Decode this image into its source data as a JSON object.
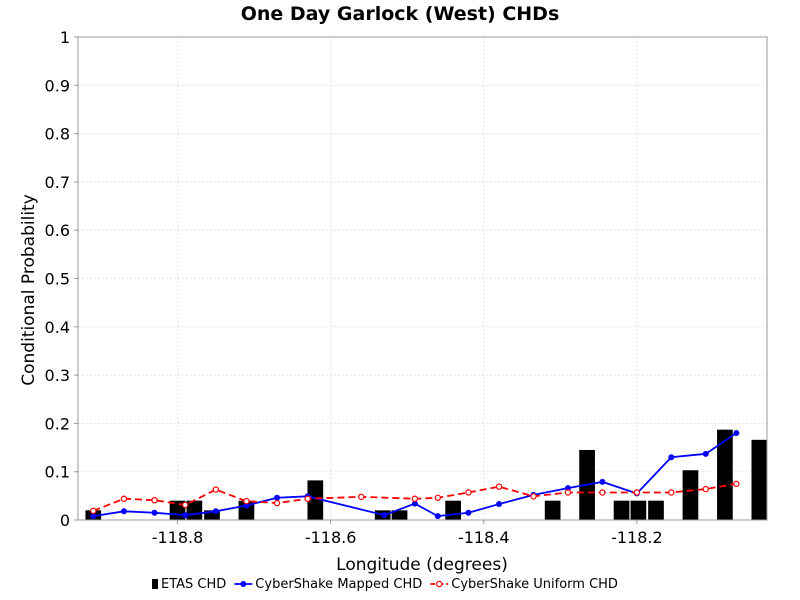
{
  "chart_data": {
    "type": "bar+line",
    "title": "One Day Garlock (West) CHDs",
    "xlabel": "Longitude (degrees)",
    "ylabel": "Conditional Probability",
    "xlim": [
      -118.93,
      -118.03
    ],
    "ylim": [
      0,
      1
    ],
    "xticks": [
      -118.8,
      -118.6,
      -118.4,
      -118.2
    ],
    "xtick_labels": [
      "-118.8",
      "-118.6",
      "-118.4",
      "-118.2"
    ],
    "yticks": [
      0,
      0.1,
      0.2,
      0.3,
      0.4,
      0.5,
      0.6,
      0.7,
      0.8,
      0.9,
      1
    ],
    "ytick_labels": [
      "0",
      "0.1",
      "0.2",
      "0.3",
      "0.4",
      "0.5",
      "0.6",
      "0.7",
      "0.8",
      "0.9",
      "1"
    ],
    "grid": true,
    "legend_position": "bottom",
    "bar_width": 0.0205,
    "series": [
      {
        "name": "ETAS CHD",
        "kind": "bar",
        "color": "#000000",
        "x": [
          -118.91,
          -118.8,
          -118.778,
          -118.755,
          -118.71,
          -118.62,
          -118.532,
          -118.51,
          -118.44,
          -118.31,
          -118.265,
          -118.22,
          -118.198,
          -118.175,
          -118.13,
          -118.085,
          -118.04
        ],
        "y": [
          0.02,
          0.04,
          0.04,
          0.02,
          0.04,
          0.082,
          0.02,
          0.02,
          0.04,
          0.04,
          0.145,
          0.04,
          0.04,
          0.04,
          0.103,
          0.187,
          0.166
        ]
      },
      {
        "name": "CyberShake Mapped CHD",
        "kind": "line",
        "color": "#0000ff",
        "x": [
          -118.91,
          -118.87,
          -118.83,
          -118.79,
          -118.75,
          -118.71,
          -118.67,
          -118.63,
          -118.53,
          -118.49,
          -118.46,
          -118.42,
          -118.38,
          -118.335,
          -118.29,
          -118.245,
          -118.2,
          -118.155,
          -118.11,
          -118.07
        ],
        "y": [
          0.008,
          0.018,
          0.015,
          0.01,
          0.018,
          0.03,
          0.046,
          0.049,
          0.01,
          0.034,
          0.008,
          0.015,
          0.033,
          0.052,
          0.066,
          0.079,
          0.055,
          0.13,
          0.137,
          0.18
        ]
      },
      {
        "name": "CyberShake Uniform CHD",
        "kind": "line-dashed",
        "color": "#ff0000",
        "x": [
          -118.91,
          -118.87,
          -118.83,
          -118.79,
          -118.75,
          -118.71,
          -118.67,
          -118.63,
          -118.56,
          -118.49,
          -118.46,
          -118.42,
          -118.38,
          -118.335,
          -118.29,
          -118.245,
          -118.2,
          -118.155,
          -118.11,
          -118.07
        ],
        "y": [
          0.019,
          0.044,
          0.041,
          0.031,
          0.063,
          0.039,
          0.035,
          0.044,
          0.048,
          0.044,
          0.046,
          0.057,
          0.069,
          0.049,
          0.057,
          0.057,
          0.057,
          0.057,
          0.064,
          0.075
        ]
      }
    ]
  }
}
